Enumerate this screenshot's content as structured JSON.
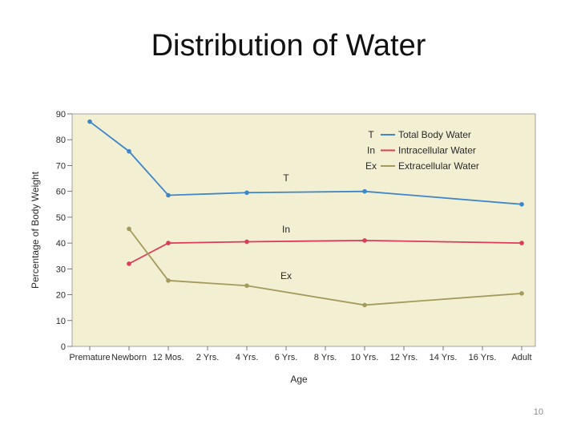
{
  "slide": {
    "title": "Distribution of Water",
    "page_number": "10"
  },
  "colors": {
    "plot_background": "#f3efd2",
    "total": "#3e86c8",
    "intracellular": "#dc3c5a",
    "extracellular": "#a39a5c"
  },
  "chart_data": {
    "type": "line",
    "title": "",
    "xlabel": "Age",
    "ylabel": "Percentage of Body Weight",
    "ylim": [
      0,
      90
    ],
    "yticks": [
      0,
      10,
      20,
      30,
      40,
      50,
      60,
      70,
      80,
      90
    ],
    "categories": [
      "Premature",
      "Newborn",
      "12 Mos.",
      "2 Yrs.",
      "4 Yrs.",
      "6 Yrs.",
      "8 Yrs.",
      "10 Yrs.",
      "12 Yrs.",
      "14 Yrs.",
      "16 Yrs.",
      "Adult"
    ],
    "grid": false,
    "legend_position": "top-right",
    "series": [
      {
        "key": "T",
        "name": "Total Body Water",
        "color": "#3e86c8",
        "points": [
          {
            "x": "Premature",
            "y": 87
          },
          {
            "x": "Newborn",
            "y": 75.5
          },
          {
            "x": "12 Mos.",
            "y": 58.5
          },
          {
            "x": "4 Yrs.",
            "y": 59.5
          },
          {
            "x": "10 Yrs.",
            "y": 60
          },
          {
            "x": "Adult",
            "y": 55
          }
        ]
      },
      {
        "key": "In",
        "name": "Intracellular Water",
        "color": "#dc3c5a",
        "points": [
          {
            "x": "Newborn",
            "y": 32
          },
          {
            "x": "12 Mos.",
            "y": 40
          },
          {
            "x": "4 Yrs.",
            "y": 40.5
          },
          {
            "x": "10 Yrs.",
            "y": 41
          },
          {
            "x": "Adult",
            "y": 40
          }
        ]
      },
      {
        "key": "Ex",
        "name": "Extracellular Water",
        "color": "#a39a5c",
        "points": [
          {
            "x": "Newborn",
            "y": 45.5
          },
          {
            "x": "12 Mos.",
            "y": 25.5
          },
          {
            "x": "4 Yrs.",
            "y": 23.5
          },
          {
            "x": "10 Yrs.",
            "y": 16
          },
          {
            "x": "Adult",
            "y": 20.5
          }
        ]
      }
    ],
    "annotations": [
      {
        "text": "T",
        "near_x": "6 Yrs.",
        "y": 64
      },
      {
        "text": "In",
        "near_x": "6 Yrs.",
        "y": 44
      },
      {
        "text": "Ex",
        "near_x": "6 Yrs.",
        "y": 26
      }
    ]
  }
}
